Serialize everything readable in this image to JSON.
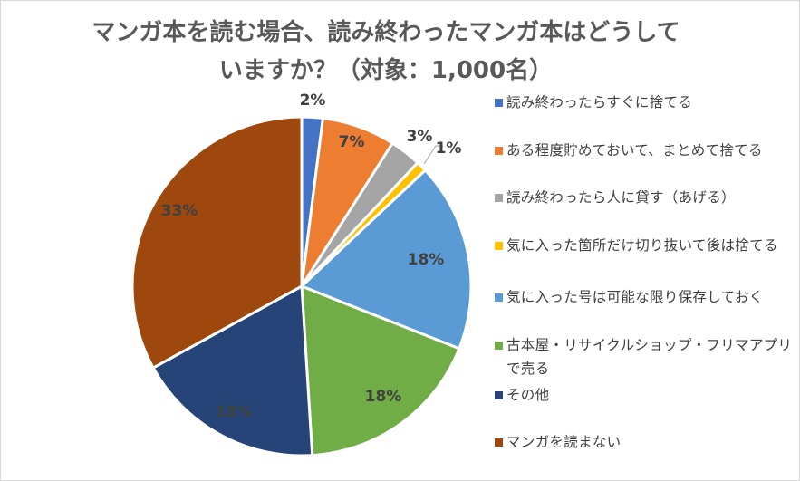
{
  "chart_data": {
    "type": "pie",
    "title": [
      "マンガ本を読む場合、読み終わったマンガ本はどうして",
      "いますか？（対象：1,000名）"
    ],
    "slices": [
      {
        "label": "読み終わったらすぐに捨てる",
        "value": 2,
        "data_label": "2%",
        "color": "#4472c4",
        "label_color": "#404040"
      },
      {
        "label": "ある程度貯めておいて、まとめて捨てる",
        "value": 7,
        "data_label": "7%",
        "color": "#ed7d31",
        "label_color": "#404040"
      },
      {
        "label": "読み終わったら人に貸す（あげる）",
        "value": 3,
        "data_label": "3%",
        "color": "#a5a5a5",
        "label_color": "#404040"
      },
      {
        "label": "気に入った箇所だけ切り抜いて後は捨てる",
        "value": 1,
        "data_label": "1%",
        "color": "#ffc000",
        "label_color": "#404040"
      },
      {
        "label": "気に入った号は可能な限り保存しておく",
        "value": 18,
        "data_label": "18%",
        "color": "#5b9bd5",
        "label_color": "#404040"
      },
      {
        "label": "古本屋・リサイクルショップ・フリマアプリで売る",
        "value": 18,
        "data_label": "18%",
        "color": "#70ad47",
        "label_color": "#404040"
      },
      {
        "label": "その他",
        "value": 18,
        "data_label": "18%",
        "color": "#264478",
        "label_color": "#404040"
      },
      {
        "label": "マンガを読まない",
        "value": 33,
        "data_label": "33%",
        "color": "#9e480e",
        "label_color": "#404040"
      }
    ],
    "legend_position": "right"
  }
}
